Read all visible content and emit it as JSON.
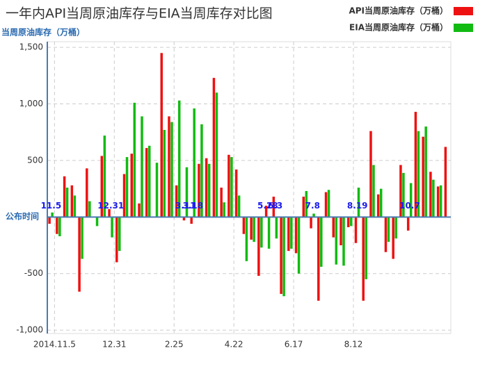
{
  "chart_data": {
    "type": "bar",
    "title": "一年内API当周原油库存与EIA当周库存对比图",
    "y_axis_label": "当周原油库存（万桶）",
    "x_axis_label": "公布时间",
    "categories": [
      "2014.11.5",
      null,
      null,
      null,
      null,
      null,
      null,
      null,
      "12.31",
      null,
      null,
      null,
      null,
      null,
      null,
      null,
      "2.25",
      null,
      null,
      null,
      null,
      null,
      null,
      null,
      "4.22",
      null,
      null,
      null,
      null,
      null,
      null,
      null,
      "6.17",
      null,
      null,
      null,
      null,
      null,
      null,
      null,
      "8.12",
      null,
      null,
      null,
      null,
      null,
      null,
      null,
      null,
      null,
      null,
      null,
      null,
      null
    ],
    "series": [
      {
        "name": "API当周原油库存（万桶）",
        "color": "#ee1111",
        "values": [
          -60,
          -150,
          360,
          280,
          -660,
          430,
          0,
          540,
          70,
          -400,
          380,
          560,
          120,
          610,
          0,
          1450,
          890,
          280,
          -30,
          -60,
          470,
          520,
          1230,
          260,
          550,
          420,
          -150,
          -200,
          -520,
          100,
          180,
          -680,
          -300,
          -320,
          180,
          -100,
          -740,
          220,
          -180,
          -250,
          -90,
          -230,
          -740,
          760,
          200,
          -310,
          -370,
          460,
          -120,
          930,
          710,
          400,
          270,
          620
        ]
      },
      {
        "name": "EIA当周原油库存（万桶）",
        "color": "#11bb11",
        "values": [
          40,
          -170,
          260,
          190,
          -370,
          140,
          -80,
          720,
          -180,
          -300,
          530,
          1010,
          890,
          630,
          480,
          770,
          840,
          1030,
          440,
          960,
          820,
          470,
          1100,
          130,
          530,
          190,
          -390,
          -220,
          -270,
          -280,
          -190,
          -700,
          -280,
          -500,
          230,
          30,
          -440,
          240,
          -420,
          -430,
          -80,
          260,
          -550,
          460,
          250,
          -220,
          -190,
          390,
          300,
          760,
          800,
          330,
          280,
          null
        ]
      }
    ],
    "point_labels": [
      "11.5",
      null,
      null,
      null,
      null,
      null,
      null,
      null,
      "12.31",
      null,
      null,
      null,
      null,
      null,
      null,
      null,
      null,
      null,
      "3.11",
      "3.18",
      null,
      null,
      null,
      null,
      null,
      null,
      null,
      null,
      null,
      "5.28",
      "6.3",
      null,
      null,
      null,
      null,
      "7.8",
      null,
      null,
      null,
      null,
      null,
      "8.19",
      null,
      null,
      null,
      null,
      null,
      null,
      "10.7",
      null,
      null,
      null,
      null,
      null
    ],
    "ylim": [
      -1030,
      1550
    ],
    "yticks": [
      {
        "value": -1000,
        "label": "-1,000"
      },
      -500,
      500,
      {
        "value": 1000,
        "label": "1,000"
      },
      {
        "value": 1500,
        "label": "1,500"
      }
    ],
    "grid": true,
    "legend": "top-right"
  }
}
